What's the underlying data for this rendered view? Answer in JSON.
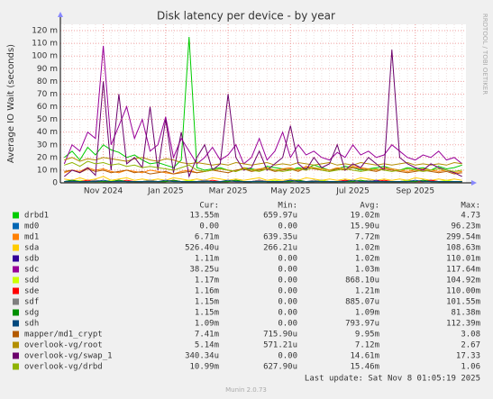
{
  "chart_data": {
    "type": "line",
    "title": "Disk latency per device - by year",
    "y_label": "Average IO Wait (seconds)",
    "side_label": "RRDTOOL / TOBI OETIKER",
    "categories": [
      null,
      null,
      null,
      null,
      null,
      "Nov 2024",
      null,
      null,
      null,
      null,
      null,
      null,
      null,
      "Jan 2025",
      null,
      null,
      null,
      null,
      null,
      null,
      null,
      "Mar 2025",
      null,
      null,
      null,
      null,
      null,
      null,
      null,
      "May 2025",
      null,
      null,
      null,
      null,
      null,
      null,
      null,
      "Jul 2025",
      null,
      null,
      null,
      null,
      null,
      null,
      null,
      "Sep 2025",
      null,
      null,
      null,
      null,
      null,
      null
    ],
    "ylim": [
      0,
      125
    ],
    "yticks": [
      0,
      {
        "value": 10,
        "label": "10 m"
      },
      {
        "value": 20,
        "label": "20 m"
      },
      {
        "value": 30,
        "label": "30 m"
      },
      {
        "value": 40,
        "label": "40 m"
      },
      {
        "value": 50,
        "label": "50 m"
      },
      {
        "value": 60,
        "label": "60 m"
      },
      {
        "value": 70,
        "label": "70 m"
      },
      {
        "value": 80,
        "label": "80 m"
      },
      {
        "value": 90,
        "label": "90 m"
      },
      {
        "value": 100,
        "label": "100 m"
      },
      {
        "value": 110,
        "label": "110 m"
      },
      {
        "value": 120,
        "label": "120 m"
      }
    ],
    "grid": true,
    "columns": [
      "Cur:",
      "Min:",
      "Avg:",
      "Max:"
    ],
    "series": [
      {
        "name": "drbd1",
        "color": "#00cc00",
        "values": [
          20,
          25,
          18,
          28,
          22,
          30,
          26,
          24,
          20,
          22,
          18,
          15,
          16,
          14,
          12,
          18,
          115,
          12,
          10,
          11,
          12,
          10,
          9,
          12,
          11,
          10,
          13,
          12,
          11,
          10,
          12,
          11,
          14,
          12,
          10,
          11,
          13,
          12,
          10,
          11,
          12,
          13,
          11,
          10,
          12,
          11,
          12,
          10,
          13,
          11,
          12,
          14
        ],
        "stats": [
          "13.55m",
          "659.97u",
          "19.02m",
          "4.73"
        ]
      },
      {
        "name": "md0",
        "color": "#0066b3",
        "values": [
          0,
          0,
          0,
          0,
          0,
          0,
          0,
          0,
          0,
          0,
          0,
          0,
          0,
          0,
          0,
          0,
          0,
          0,
          0,
          0,
          0,
          0,
          0,
          0,
          0,
          0,
          0,
          0,
          0,
          0,
          0,
          0,
          0,
          0,
          0,
          0,
          0,
          0,
          0,
          0,
          0,
          0,
          0,
          0,
          0,
          0,
          0,
          0,
          0,
          0,
          0,
          0
        ],
        "stats": [
          "0.00",
          "0.00",
          "15.90u",
          "96.23m"
        ]
      },
      {
        "name": "md1",
        "color": "#ff8000",
        "values": [
          8,
          10,
          9,
          12,
          10,
          11,
          9,
          8,
          10,
          9,
          8,
          10,
          9,
          8,
          7,
          9,
          10,
          8,
          9,
          10,
          11,
          10,
          9,
          12,
          10,
          11,
          12,
          10,
          11,
          12,
          10,
          13,
          12,
          11,
          10,
          12,
          11,
          13,
          12,
          11,
          10,
          12,
          11,
          10,
          9,
          10,
          11,
          10,
          9,
          10,
          8,
          9
        ],
        "stats": [
          "6.71m",
          "639.35u",
          "7.72m",
          "299.54m"
        ]
      },
      {
        "name": "sda",
        "color": "#ffcc00",
        "values": [
          3,
          2,
          4,
          2,
          3,
          5,
          2,
          3,
          4,
          2,
          3,
          2,
          3,
          2,
          4,
          3,
          2,
          3,
          2,
          4,
          3,
          2,
          3,
          2,
          3,
          4,
          2,
          3,
          2,
          3,
          2,
          4,
          3,
          2,
          3,
          2,
          3,
          2,
          4,
          3,
          2,
          3,
          2,
          3,
          2,
          4,
          3,
          2,
          3,
          2,
          3,
          2
        ],
        "stats": [
          "526.40u",
          "266.21u",
          "1.02m",
          "108.63m"
        ]
      },
      {
        "name": "sdb",
        "color": "#330099",
        "values": [
          1,
          2,
          1,
          1,
          2,
          1,
          1,
          2,
          1,
          1,
          1,
          2,
          1,
          1,
          2,
          1,
          1,
          1,
          2,
          1,
          1,
          1,
          2,
          1,
          1,
          2,
          1,
          1,
          1,
          2,
          1,
          1,
          1,
          2,
          1,
          1,
          2,
          1,
          1,
          1,
          2,
          1,
          1,
          1,
          2,
          1,
          1,
          2,
          1,
          1,
          1,
          1
        ],
        "stats": [
          "1.11m",
          "0.00",
          "1.02m",
          "110.01m"
        ]
      },
      {
        "name": "sdc",
        "color": "#990099",
        "values": [
          15,
          30,
          25,
          40,
          35,
          108,
          30,
          45,
          60,
          35,
          50,
          25,
          30,
          52,
          20,
          35,
          25,
          15,
          20,
          28,
          18,
          22,
          30,
          15,
          20,
          35,
          18,
          25,
          40,
          20,
          30,
          22,
          25,
          20,
          18,
          24,
          20,
          30,
          22,
          25,
          20,
          22,
          30,
          25,
          20,
          18,
          22,
          20,
          25,
          18,
          20,
          15
        ],
        "stats": [
          "38.25u",
          "0.00",
          "1.03m",
          "117.64m"
        ]
      },
      {
        "name": "sdd",
        "color": "#ccff00",
        "values": [
          1,
          1,
          2,
          1,
          1,
          1,
          2,
          1,
          1,
          1,
          1,
          2,
          1,
          1,
          1,
          1,
          2,
          1,
          1,
          1,
          1,
          1,
          2,
          1,
          1,
          1,
          1,
          2,
          1,
          1,
          1,
          1,
          1,
          2,
          1,
          1,
          1,
          1,
          2,
          1,
          1,
          1,
          1,
          1,
          2,
          1,
          1,
          1,
          1,
          2,
          1,
          1
        ],
        "stats": [
          "1.17m",
          "0.00",
          "868.10u",
          "104.92m"
        ]
      },
      {
        "name": "sde",
        "color": "#ff0000",
        "values": [
          1,
          1,
          1,
          2,
          1,
          1,
          1,
          1,
          2,
          1,
          1,
          1,
          1,
          1,
          2,
          1,
          1,
          1,
          1,
          2,
          1,
          1,
          1,
          1,
          1,
          2,
          1,
          1,
          1,
          1,
          2,
          1,
          1,
          1,
          1,
          1,
          2,
          1,
          1,
          1,
          1,
          2,
          1,
          1,
          1,
          1,
          1,
          2,
          1,
          1,
          1,
          1
        ],
        "stats": [
          "1.16m",
          "0.00",
          "1.21m",
          "110.00m"
        ]
      },
      {
        "name": "sdf",
        "color": "#808080",
        "values": [
          1,
          1,
          1,
          1,
          2,
          1,
          1,
          1,
          1,
          1,
          1,
          2,
          1,
          1,
          1,
          1,
          1,
          1,
          2,
          1,
          1,
          1,
          1,
          1,
          1,
          2,
          1,
          1,
          1,
          1,
          1,
          1,
          2,
          1,
          1,
          1,
          1,
          1,
          1,
          2,
          1,
          1,
          1,
          1,
          1,
          1,
          2,
          1,
          1,
          1,
          1,
          1
        ],
        "stats": [
          "1.15m",
          "0.00",
          "885.07u",
          "101.55m"
        ]
      },
      {
        "name": "sdg",
        "color": "#008f00",
        "values": [
          1,
          2,
          1,
          1,
          1,
          1,
          1,
          2,
          1,
          1,
          1,
          1,
          1,
          1,
          2,
          1,
          1,
          1,
          1,
          1,
          1,
          1,
          2,
          1,
          1,
          1,
          1,
          1,
          1,
          1,
          2,
          1,
          1,
          1,
          1,
          1,
          1,
          1,
          2,
          1,
          1,
          1,
          1,
          1,
          1,
          1,
          2,
          1,
          1,
          1,
          1,
          1
        ],
        "stats": [
          "1.15m",
          "0.00",
          "1.09m",
          "81.38m"
        ]
      },
      {
        "name": "sdh",
        "color": "#00487d",
        "values": [
          1,
          1,
          1,
          1,
          1,
          2,
          1,
          1,
          1,
          1,
          1,
          1,
          1,
          2,
          1,
          1,
          1,
          1,
          1,
          1,
          1,
          2,
          1,
          1,
          1,
          1,
          1,
          1,
          1,
          2,
          1,
          1,
          1,
          1,
          1,
          1,
          1,
          2,
          1,
          1,
          1,
          1,
          1,
          1,
          1,
          2,
          1,
          1,
          1,
          1,
          1,
          1
        ],
        "stats": [
          "1.09m",
          "0.00",
          "793.97u",
          "112.39m"
        ]
      },
      {
        "name": "mapper/md1_crypt",
        "color": "#b35a00",
        "values": [
          9,
          10,
          8,
          11,
          9,
          10,
          8,
          9,
          10,
          8,
          9,
          7,
          8,
          9,
          7,
          8,
          9,
          8,
          9,
          10,
          9,
          8,
          10,
          11,
          9,
          10,
          11,
          9,
          10,
          11,
          9,
          12,
          11,
          10,
          9,
          11,
          10,
          12,
          11,
          10,
          9,
          11,
          10,
          9,
          8,
          9,
          10,
          9,
          8,
          9,
          7,
          8
        ],
        "stats": [
          "7.41m",
          "715.90u",
          "9.95m",
          "3.08"
        ]
      },
      {
        "name": "overlook-vg/root",
        "color": "#b38f00",
        "values": [
          18,
          20,
          17,
          19,
          18,
          20,
          19,
          18,
          17,
          19,
          20,
          18,
          17,
          19,
          18,
          16,
          15,
          16,
          15,
          14,
          15,
          14,
          16,
          15,
          14,
          15,
          16,
          14,
          15,
          14,
          16,
          15,
          14,
          15,
          16,
          14,
          15,
          14,
          16,
          15,
          14,
          15,
          14,
          15,
          16,
          14,
          15,
          14,
          15,
          14,
          16,
          15
        ],
        "stats": [
          "5.14m",
          "571.21u",
          "7.12m",
          "2.67"
        ]
      },
      {
        "name": "overlook-vg/swap_1",
        "color": "#6b006b",
        "values": [
          5,
          10,
          8,
          12,
          6,
          80,
          10,
          70,
          15,
          20,
          12,
          60,
          10,
          50,
          8,
          40,
          5,
          20,
          30,
          10,
          15,
          70,
          20,
          10,
          12,
          25,
          10,
          15,
          20,
          45,
          15,
          10,
          20,
          12,
          15,
          30,
          10,
          15,
          12,
          20,
          15,
          10,
          105,
          20,
          15,
          12,
          10,
          15,
          12,
          10,
          8,
          5
        ],
        "stats": [
          "340.34u",
          "0.00",
          "14.61m",
          "17.33"
        ]
      },
      {
        "name": "overlook-vg/drbd",
        "color": "#8fb300",
        "values": [
          14,
          16,
          13,
          17,
          15,
          16,
          14,
          15,
          13,
          14,
          12,
          13,
          12,
          11,
          10,
          12,
          14,
          10,
          9,
          10,
          11,
          10,
          9,
          11,
          10,
          9,
          11,
          10,
          9,
          10,
          11,
          10,
          12,
          10,
          9,
          10,
          11,
          10,
          9,
          10,
          11,
          10,
          9,
          10,
          11,
          10,
          9,
          10,
          11,
          10,
          9,
          10
        ],
        "stats": [
          "10.99m",
          "627.90u",
          "15.46m",
          "1.06"
        ]
      }
    ],
    "last_update": "Last update: Sat Nov  8 01:05:19 2025",
    "footer": "Munin 2.0.73"
  }
}
